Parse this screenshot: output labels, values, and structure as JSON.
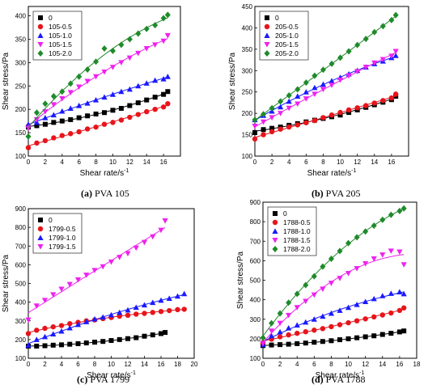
{
  "colors": {
    "black": "#000000",
    "red": "#e8141b",
    "blue": "#1a1aff",
    "magenta": "#ee22ee",
    "green": "#1f8a2a"
  },
  "chart_data": [
    {
      "type": "scatter",
      "caption_tag": "(a)",
      "caption_text": "PVA 105",
      "xlabel": "Shear rate/s",
      "xlabel_sup": "-1",
      "ylabel": "Shear stress/Pa",
      "xlim": [
        0,
        18
      ],
      "ylim": [
        100,
        420
      ],
      "xticks": [
        0,
        2,
        4,
        6,
        8,
        10,
        12,
        14,
        16
      ],
      "yticks": [
        100,
        150,
        200,
        250,
        300,
        350,
        400
      ],
      "legend_position": "top-left",
      "series": [
        {
          "name": "0",
          "marker": "square",
          "color": "#000000",
          "x": [
            0,
            1,
            2,
            3,
            4,
            5,
            6,
            7,
            8,
            9,
            10,
            11,
            12,
            13,
            14,
            15,
            16,
            16.5
          ],
          "y": [
            162,
            165,
            168,
            172,
            175,
            178,
            182,
            186,
            190,
            193,
            198,
            202,
            208,
            214,
            220,
            226,
            232,
            238
          ]
        },
        {
          "name": "105-0.5",
          "marker": "circle",
          "color": "#e8141b",
          "x": [
            0,
            1,
            2,
            3,
            4,
            5,
            6,
            7,
            8,
            9,
            10,
            11,
            12,
            13,
            14,
            15,
            16,
            16.5
          ],
          "y": [
            118,
            128,
            133,
            139,
            144,
            148,
            152,
            158,
            162,
            168,
            172,
            177,
            183,
            189,
            195,
            200,
            205,
            212
          ]
        },
        {
          "name": "105-1.0",
          "marker": "triangle-up",
          "color": "#1a1aff",
          "x": [
            0,
            1,
            2,
            3,
            4,
            5,
            6,
            7,
            8,
            9,
            10,
            11,
            12,
            13,
            14,
            15,
            16,
            16.5
          ],
          "y": [
            168,
            172,
            182,
            188,
            196,
            202,
            208,
            213,
            220,
            226,
            232,
            238,
            243,
            250,
            256,
            262,
            265,
            270
          ]
        },
        {
          "name": "105-1.5",
          "marker": "triangle-down",
          "color": "#ee22ee",
          "x": [
            0,
            1,
            2,
            3,
            4,
            5,
            6,
            7,
            8,
            9,
            10,
            11,
            12,
            13,
            14,
            15,
            16,
            16.5
          ],
          "y": [
            160,
            178,
            195,
            210,
            223,
            236,
            248,
            260,
            270,
            280,
            290,
            300,
            310,
            320,
            330,
            338,
            346,
            358
          ]
        },
        {
          "name": "105-2.0",
          "marker": "diamond",
          "color": "#1f8a2a",
          "x": [
            0,
            1,
            2,
            3,
            4,
            5,
            6,
            7,
            8,
            9,
            10,
            11,
            12,
            13,
            14,
            15,
            16,
            16.5
          ],
          "y": [
            142,
            193,
            212,
            228,
            238,
            255,
            270,
            285,
            302,
            330,
            325,
            338,
            350,
            362,
            372,
            380,
            395,
            402
          ]
        }
      ]
    },
    {
      "type": "scatter",
      "caption_tag": "(b)",
      "caption_text": "PVA 205",
      "xlabel": "Shear rate/s",
      "xlabel_sup": "-1",
      "ylabel": "Shear stress/Pa",
      "xlim": [
        0,
        18
      ],
      "ylim": [
        100,
        450
      ],
      "xticks": [
        0,
        2,
        4,
        6,
        8,
        10,
        12,
        14,
        16
      ],
      "yticks": [
        100,
        150,
        200,
        250,
        300,
        350,
        400,
        450
      ],
      "legend_position": "top-left",
      "series": [
        {
          "name": "0",
          "marker": "square",
          "color": "#000000",
          "x": [
            0,
            1,
            2,
            3,
            4,
            5,
            6,
            7,
            8,
            9,
            10,
            11,
            12,
            13,
            14,
            15,
            16,
            16.5
          ],
          "y": [
            155,
            162,
            165,
            168,
            172,
            176,
            180,
            184,
            188,
            192,
            196,
            202,
            208,
            214,
            220,
            226,
            232,
            240
          ]
        },
        {
          "name": "205-0.5",
          "marker": "circle",
          "color": "#e8141b",
          "x": [
            0,
            1,
            2,
            3,
            4,
            5,
            6,
            7,
            8,
            9,
            10,
            11,
            12,
            13,
            14,
            15,
            16,
            16.5
          ],
          "y": [
            140,
            150,
            157,
            163,
            168,
            173,
            178,
            183,
            190,
            196,
            202,
            208,
            213,
            218,
            224,
            230,
            236,
            245
          ]
        },
        {
          "name": "205-1.0",
          "marker": "triangle-up",
          "color": "#1a1aff",
          "x": [
            0,
            1,
            2,
            3,
            4,
            5,
            6,
            7,
            8,
            9,
            10,
            11,
            12,
            13,
            14,
            15,
            16,
            16.5
          ],
          "y": [
            185,
            195,
            205,
            215,
            228,
            240,
            250,
            260,
            268,
            276,
            284,
            292,
            300,
            308,
            316,
            322,
            330,
            335
          ]
        },
        {
          "name": "205-1.5",
          "marker": "triangle-down",
          "color": "#ee22ee",
          "x": [
            0,
            1,
            2,
            3,
            4,
            5,
            6,
            7,
            8,
            9,
            10,
            11,
            12,
            13,
            14,
            15,
            16,
            16.5
          ],
          "y": [
            170,
            180,
            190,
            200,
            212,
            222,
            234,
            245,
            256,
            266,
            278,
            288,
            298,
            308,
            318,
            326,
            334,
            345
          ]
        },
        {
          "name": "205-2.0",
          "marker": "diamond",
          "color": "#1f8a2a",
          "x": [
            0,
            1,
            2,
            3,
            4,
            5,
            6,
            7,
            8,
            9,
            10,
            11,
            12,
            13,
            14,
            15,
            16,
            16.5
          ],
          "y": [
            185,
            198,
            212,
            228,
            242,
            256,
            272,
            288,
            302,
            316,
            330,
            345,
            360,
            374,
            390,
            404,
            418,
            430
          ]
        }
      ]
    },
    {
      "type": "scatter",
      "caption_tag": "(c)",
      "caption_text": "PVA 1799",
      "xlabel": "Shear rate/s",
      "xlabel_sup": "-1",
      "ylabel": "Shear stress/Pa",
      "xlim": [
        0,
        20
      ],
      "ylim": [
        100,
        900
      ],
      "xticks": [
        0,
        2,
        4,
        6,
        8,
        10,
        12,
        14,
        16,
        18,
        20
      ],
      "yticks": [
        100,
        200,
        300,
        400,
        500,
        600,
        700,
        800,
        900
      ],
      "legend_position": "top-left",
      "series": [
        {
          "name": "0",
          "marker": "square",
          "color": "#000000",
          "x": [
            0,
            1,
            2,
            3,
            4,
            5,
            6,
            7,
            8,
            9,
            10,
            11,
            12,
            13,
            14,
            15,
            16,
            16.5
          ],
          "y": [
            165,
            165,
            167,
            170,
            172,
            175,
            178,
            182,
            186,
            190,
            195,
            200,
            205,
            210,
            218,
            225,
            232,
            238
          ]
        },
        {
          "name": "1799-0.5",
          "marker": "circle",
          "color": "#e8141b",
          "x": [
            0,
            1,
            2,
            3,
            4,
            5,
            6,
            7,
            8,
            9,
            10,
            11,
            12,
            13,
            14,
            15,
            16,
            17,
            18,
            18.8
          ],
          "y": [
            232,
            250,
            260,
            268,
            275,
            285,
            292,
            300,
            305,
            312,
            318,
            325,
            330,
            336,
            340,
            345,
            350,
            355,
            360,
            362
          ]
        },
        {
          "name": "1799-1.0",
          "marker": "triangle-up",
          "color": "#1a1aff",
          "x": [
            0,
            1,
            2,
            3,
            4,
            5,
            6,
            7,
            8,
            9,
            10,
            11,
            12,
            13,
            14,
            15,
            16,
            17,
            18,
            18.8
          ],
          "y": [
            170,
            200,
            215,
            230,
            245,
            262,
            280,
            295,
            310,
            320,
            332,
            345,
            358,
            372,
            385,
            398,
            410,
            420,
            432,
            445
          ]
        },
        {
          "name": "1799-1.5",
          "marker": "triangle-down",
          "color": "#ee22ee",
          "x": [
            0,
            1,
            2,
            3,
            4,
            5,
            6,
            7,
            8,
            9,
            10,
            11,
            12,
            13,
            14,
            15,
            16,
            16.5
          ],
          "y": [
            305,
            380,
            410,
            440,
            470,
            495,
            520,
            545,
            570,
            590,
            615,
            640,
            660,
            690,
            720,
            750,
            785,
            835
          ]
        }
      ]
    },
    {
      "type": "scatter",
      "caption_tag": "(d)",
      "caption_text": "PVA 1788",
      "xlabel": "Shear rate/s",
      "xlabel_sup": "-1",
      "ylabel": "Shear stress/Pa",
      "xlim": [
        0,
        18
      ],
      "ylim": [
        100,
        900
      ],
      "xticks": [
        0,
        2,
        4,
        6,
        8,
        10,
        12,
        14,
        16,
        18
      ],
      "yticks": [
        100,
        200,
        300,
        400,
        500,
        600,
        700,
        800,
        900
      ],
      "legend_position": "top-left",
      "series": [
        {
          "name": "0",
          "marker": "square",
          "color": "#000000",
          "x": [
            0,
            1,
            2,
            3,
            4,
            5,
            6,
            7,
            8,
            9,
            10,
            11,
            12,
            13,
            14,
            15,
            16,
            16.5
          ],
          "y": [
            165,
            168,
            170,
            172,
            175,
            178,
            182,
            186,
            190,
            195,
            200,
            205,
            210,
            215,
            222,
            228,
            235,
            240
          ]
        },
        {
          "name": "1788-0.5",
          "marker": "circle",
          "color": "#e8141b",
          "x": [
            0,
            1,
            2,
            3,
            4,
            5,
            6,
            7,
            8,
            9,
            10,
            11,
            12,
            13,
            14,
            15,
            16,
            16.5
          ],
          "y": [
            180,
            198,
            210,
            220,
            228,
            236,
            244,
            252,
            262,
            272,
            282,
            292,
            302,
            312,
            322,
            332,
            345,
            358
          ]
        },
        {
          "name": "1788-1.0",
          "marker": "triangle-up",
          "color": "#1a1aff",
          "x": [
            0,
            1,
            2,
            3,
            4,
            5,
            6,
            7,
            8,
            9,
            10,
            11,
            12,
            13,
            14,
            15,
            16,
            16.5
          ],
          "y": [
            170,
            215,
            235,
            255,
            270,
            285,
            300,
            315,
            330,
            345,
            360,
            375,
            390,
            405,
            420,
            432,
            440,
            430
          ]
        },
        {
          "name": "1788-1.5",
          "marker": "triangle-down",
          "color": "#ee22ee",
          "x": [
            0,
            1,
            2,
            3,
            4,
            5,
            6,
            7,
            8,
            9,
            10,
            11,
            12,
            13,
            14,
            15,
            16,
            16.5
          ],
          "y": [
            175,
            240,
            280,
            320,
            360,
            392,
            425,
            455,
            485,
            510,
            535,
            560,
            585,
            610,
            630,
            650,
            645,
            580
          ]
        },
        {
          "name": "1788-2.0",
          "marker": "diamond",
          "color": "#1f8a2a",
          "x": [
            0,
            1,
            2,
            3,
            4,
            5,
            6,
            7,
            8,
            9,
            10,
            11,
            12,
            13,
            14,
            15,
            16,
            16.5
          ],
          "y": [
            205,
            280,
            330,
            385,
            430,
            475,
            520,
            570,
            610,
            650,
            690,
            720,
            750,
            780,
            810,
            835,
            855,
            868
          ]
        }
      ]
    }
  ]
}
